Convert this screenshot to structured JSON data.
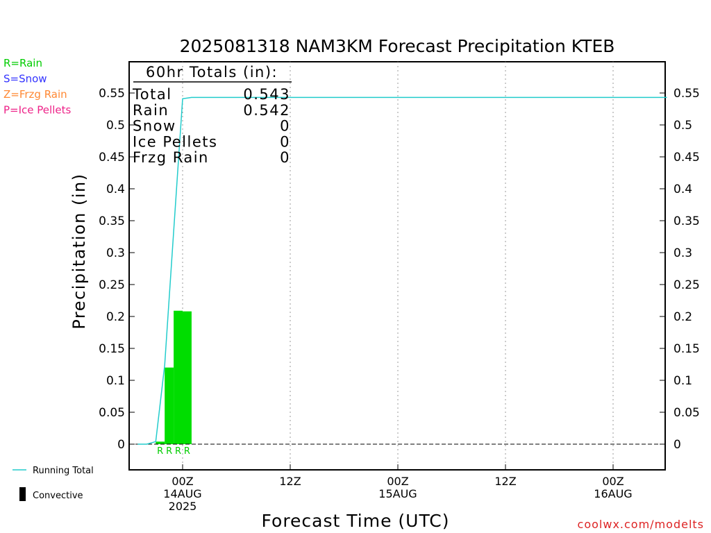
{
  "chart_data": {
    "type": "bar",
    "title": "2025081318 NAM3KM Forecast Precipitation KTEB",
    "ylabel": "Precipitation (in)",
    "xlabel": "Forecast Time (UTC)",
    "ylim": [
      -0.04,
      0.6
    ],
    "yticks": [
      0,
      0.05,
      0.1,
      0.15,
      0.2,
      0.25,
      0.3,
      0.35,
      0.4,
      0.45,
      0.5,
      0.55
    ],
    "ytick_labels": [
      "0",
      "0.05",
      "0.1",
      "0.15",
      "0.2",
      "0.25",
      "0.3",
      "0.35",
      "0.4",
      "0.45",
      "0.5",
      "0.55"
    ],
    "grid": "vertical dotted",
    "xlim": [
      "2025-08-13 18Z",
      "2025-08-16 06Z"
    ],
    "xticks": [
      {
        "time": "2025-08-14 00Z",
        "lines": [
          "00Z",
          "14AUG",
          "2025"
        ]
      },
      {
        "time": "2025-08-14 12Z",
        "lines": [
          "12Z"
        ]
      },
      {
        "time": "2025-08-15 00Z",
        "lines": [
          "00Z",
          "15AUG"
        ]
      },
      {
        "time": "2025-08-15 12Z",
        "lines": [
          "12Z"
        ]
      },
      {
        "time": "2025-08-16 00Z",
        "lines": [
          "00Z",
          "16AUG"
        ]
      }
    ],
    "precip_type_legend": [
      {
        "label": "R=Rain",
        "color": "#00cc00"
      },
      {
        "label": "S=Snow",
        "color": "#3333ff"
      },
      {
        "label": "Z=Frzg Rain",
        "color": "#ff8833"
      },
      {
        "label": "P=Ice Pellets",
        "color": "#ee2288"
      }
    ],
    "bars": [
      {
        "time_start": "2025-08-13 21Z",
        "time_end": "2025-08-13 22Z",
        "value": 0.004,
        "type": "R",
        "color": "#00dd00"
      },
      {
        "time_start": "2025-08-13 22Z",
        "time_end": "2025-08-13 23Z",
        "value": 0.12,
        "type": "R",
        "color": "#00dd00"
      },
      {
        "time_start": "2025-08-13 23Z",
        "time_end": "2025-08-14 00Z",
        "value": 0.209,
        "type": "R",
        "color": "#00dd00"
      },
      {
        "time_start": "2025-08-14 00Z",
        "time_end": "2025-08-14 01Z",
        "value": 0.208,
        "type": "R",
        "color": "#00dd00"
      }
    ],
    "series": [
      {
        "name": "Running Total",
        "color": "#22cccc",
        "x": [
          "2025-08-13 19Z",
          "2025-08-13 20Z",
          "2025-08-13 21Z",
          "2025-08-13 22Z",
          "2025-08-13 23Z",
          "2025-08-14 00Z",
          "2025-08-14 01Z",
          "2025-08-16 06Z"
        ],
        "y": [
          0,
          0,
          0.004,
          0.124,
          0.333,
          0.541,
          0.543,
          0.543
        ]
      }
    ],
    "totals_box": {
      "header": "60hr Totals (in):",
      "rows": [
        {
          "label": "Total",
          "value": "0.543"
        },
        {
          "label": "Rain",
          "value": "0.542"
        },
        {
          "label": "Snow",
          "value": "0"
        },
        {
          "label": "Ice Pellets",
          "value": "0"
        },
        {
          "label": "Frzg Rain",
          "value": "0"
        }
      ]
    },
    "legend": [
      {
        "label": "Running Total",
        "symbol": "line",
        "color": "#22cccc"
      },
      {
        "label": "Convective",
        "symbol": "bar",
        "color": "#000000"
      }
    ],
    "credit": "coolwx.com/modelts"
  }
}
